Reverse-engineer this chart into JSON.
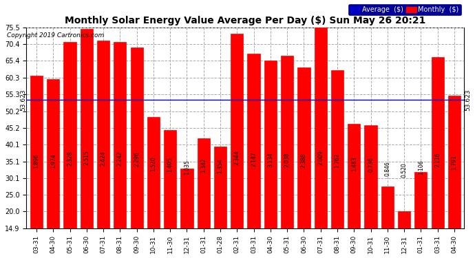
{
  "title": "Monthly Solar Energy Value Average Per Day ($) Sun May 26 20:21",
  "copyright": "Copyright 2019 Cartronics.com",
  "average_label": "Average  ($)",
  "monthly_label": "Monthly  ($)",
  "average_value": 53.623,
  "bar_color": "#ff0000",
  "average_line_color": "#0000cc",
  "x_labels": [
    "03-31",
    "04-30",
    "05-31",
    "06-30",
    "07-31",
    "08-31",
    "09-30",
    "10-31",
    "11-30",
    "12-31",
    "01-31",
    "01-28",
    "02-31",
    "03-31",
    "04-30",
    "05-31",
    "06-30",
    "07-31",
    "08-31",
    "09-30",
    "10-31",
    "11-30",
    "12-31",
    "01-31",
    "03-31",
    "04-30"
  ],
  "bar_labels": [
    "1.896",
    "1.974",
    "2.328",
    "2.515",
    "2.424",
    "2.242",
    "2.296",
    "1.520",
    "1.405",
    "1.035",
    "1.342",
    "1.354",
    "2.344",
    "2.147",
    "3.134",
    "2.038",
    "2.388",
    "2.009",
    "1.762",
    "1.483",
    "0.736",
    "0.846",
    "0.520",
    "1.106",
    "2.116",
    "1.791"
  ],
  "values": [
    61.0,
    59.8,
    71.0,
    75.0,
    71.5,
    71.0,
    69.5,
    48.5,
    44.5,
    33.0,
    42.0,
    39.5,
    73.5,
    67.5,
    65.5,
    67.0,
    63.5,
    75.5,
    62.5,
    46.5,
    46.0,
    27.5,
    20.0,
    32.0,
    66.5,
    55.0
  ],
  "ylim_min": 14.9,
  "ylim_max": 75.5,
  "yticks": [
    14.9,
    20.0,
    25.0,
    30.1,
    35.1,
    40.1,
    45.2,
    50.2,
    55.3,
    60.3,
    65.4,
    70.4,
    75.5
  ],
  "background_color": "#ffffff",
  "grid_color": "#aaaaaa",
  "title_fontsize": 10,
  "legend_avg_color": "#0000cc",
  "legend_monthly_color": "#ff0000"
}
